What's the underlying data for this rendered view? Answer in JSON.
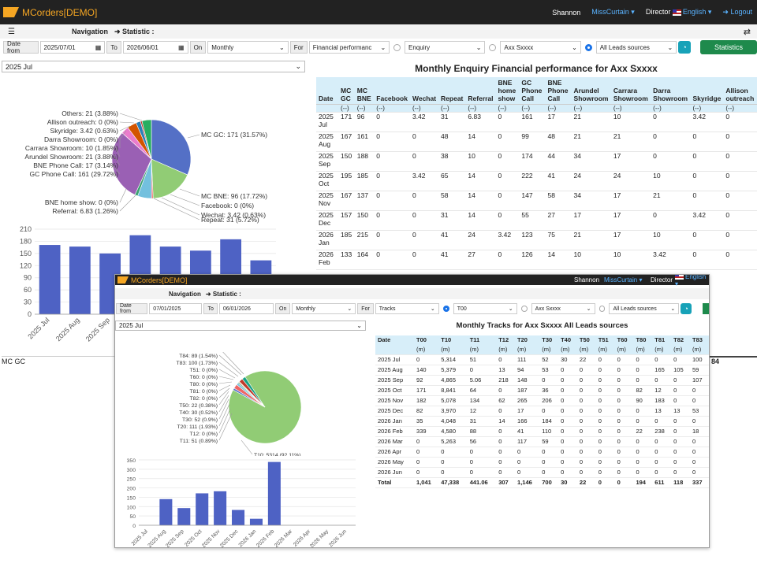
{
  "navbar": {
    "brand": "MCorders[DEMO]",
    "user": "Shannon",
    "account": "MissCurtain ▾",
    "role": "Director",
    "language": "English ▾",
    "logout": "Logout"
  },
  "toolbar": {
    "menu_icon": "☰",
    "navigation": "Navigation",
    "statistic": "➜ Statistic :",
    "expand_icon": "⇄"
  },
  "filters": {
    "date_from_label": "Date from",
    "date_from": "2025/07/01",
    "to_label": "To",
    "date_to": "2026/06/01",
    "on_label": "On",
    "period": "Monthly",
    "for_label": "For",
    "metric": "Financial performanc",
    "type": "Enquiry",
    "person": "Axx Sxxxx",
    "source": "All Leads sources",
    "statistics_button": "Statistics"
  },
  "main": {
    "period_select": "2025 Jul",
    "table_title": "Monthly Enquiry Financial performance for Axx Sxxxx",
    "footer_label": "MC GC",
    "pie_labels": [
      "MC GC: 171 (31.57%)",
      "MC BNE: 96 (17.72%)",
      "Facebook: 0 (0%)",
      "Wechat: 3.42 (0.63%)",
      "Repeat: 31 (5.72%)",
      "Referral: 6.83 (1.26%)",
      "BNE home show: 0 (0%)",
      "GC Phone Call: 161 (29.72%)",
      "BNE Phone Call: 17 (3.14%)",
      "Arundel Showroom: 21 (3.88%)",
      "Carrara Showroom: 10 (1.85%)",
      "Darra Showroom: 0 (0%)",
      "Skyridge: 3.42 (0.63%)",
      "Allison outreach: 0 (0%)",
      "Others: 21 (3.88%)"
    ],
    "columns": [
      "Date",
      "MC GC",
      "MC BNE",
      "Facebook",
      "Wechat",
      "Repeat",
      "Referral",
      "BNE home show",
      "GC Phone Call",
      "BNE Phone Call",
      "Arundel Showroom",
      "Carrara Showroom",
      "Darra Showroom",
      "Skyridge",
      "Allison outreach"
    ],
    "units": [
      "",
      "(--)",
      "(--)",
      "(--)",
      "(--)",
      "(--)",
      "(--)",
      "(--)",
      "(--)",
      "(--)",
      "(--)",
      "(--)",
      "(--)",
      "(--)",
      "(--)"
    ],
    "rows": [
      [
        "2025 Jul",
        "171",
        "96",
        "0",
        "3.42",
        "31",
        "6.83",
        "0",
        "161",
        "17",
        "21",
        "10",
        "0",
        "3.42",
        "0"
      ],
      [
        "2025 Aug",
        "167",
        "161",
        "0",
        "0",
        "48",
        "14",
        "0",
        "99",
        "48",
        "21",
        "21",
        "0",
        "0",
        "0"
      ],
      [
        "2025 Sep",
        "150",
        "188",
        "0",
        "0",
        "38",
        "10",
        "0",
        "174",
        "44",
        "34",
        "17",
        "0",
        "0",
        "0"
      ],
      [
        "2025 Oct",
        "195",
        "185",
        "0",
        "3.42",
        "65",
        "14",
        "0",
        "222",
        "41",
        "24",
        "24",
        "10",
        "0",
        "0"
      ],
      [
        "2025 Nov",
        "167",
        "137",
        "0",
        "0",
        "58",
        "14",
        "0",
        "147",
        "58",
        "34",
        "17",
        "21",
        "0",
        "0"
      ],
      [
        "2025 Dec",
        "157",
        "150",
        "0",
        "0",
        "31",
        "14",
        "0",
        "55",
        "27",
        "17",
        "17",
        "0",
        "3.42",
        "0"
      ],
      [
        "2026 Jan",
        "185",
        "215",
        "0",
        "0",
        "41",
        "24",
        "3.42",
        "123",
        "75",
        "21",
        "17",
        "10",
        "0",
        "0"
      ],
      [
        "2026 Feb",
        "133",
        "164",
        "0",
        "0",
        "41",
        "27",
        "0",
        "126",
        "14",
        "10",
        "10",
        "3.42",
        "0",
        "0"
      ]
    ],
    "peek_total": "84"
  },
  "overlay": {
    "brand": "MCorders[DEMO]",
    "user": "Shannon",
    "account": "MissCurtain ▾",
    "role": "Director",
    "language": "English ▾",
    "navigation": "Navigation",
    "statistic": "➜ Statistic :",
    "filters": {
      "date_from_label": "Date from",
      "date_from": "07/01/2025",
      "to_label": "To",
      "date_to": "06/01/2026",
      "on_label": "On",
      "period": "Monthly",
      "for_label": "For",
      "metric": "Tracks",
      "track": "T00",
      "person": "Axx Sxxxx",
      "source": "All Leads sources"
    },
    "period_select": "2025 Jul",
    "table_title": "Monthly Tracks for Axx Sxxxx All Leads sources",
    "pie_labels": [
      "T00: 0 (0%)",
      "T84: 89 (1.54%)",
      "T83: 100 (1.73%)",
      "T51: 0 (0%)",
      "T60: 0 (0%)",
      "T80: 0 (0%)",
      "T81: 0 (0%)",
      "T82: 0 (0%)",
      "T50: 22 (0.38%)",
      "T40: 30 (0.52%)",
      "T30: 52 (0.9%)",
      "T20: 111 (1.93%)",
      "T12: 0 (0%)",
      "T11: 51 (0.89%)",
      "T10: 5314 (92.11%)"
    ],
    "columns": [
      "Date",
      "T00",
      "T10",
      "T11",
      "T12",
      "T20",
      "T30",
      "T40",
      "T50",
      "T51",
      "T60",
      "T80",
      "T81",
      "T82",
      "T83"
    ],
    "units": [
      "",
      "(m)",
      "(m)",
      "(m)",
      "(m)",
      "(m)",
      "(m)",
      "(m)",
      "(m)",
      "(m)",
      "(m)",
      "(m)",
      "(m)",
      "(m)",
      "(m)"
    ],
    "rows": [
      [
        "2025 Jul",
        "0",
        "5,314",
        "51",
        "0",
        "111",
        "52",
        "30",
        "22",
        "0",
        "0",
        "0",
        "0",
        "0",
        "100"
      ],
      [
        "2025 Aug",
        "140",
        "5,379",
        "0",
        "13",
        "94",
        "53",
        "0",
        "0",
        "0",
        "0",
        "0",
        "165",
        "105",
        "59"
      ],
      [
        "2025 Sep",
        "92",
        "4,865",
        "5.06",
        "218",
        "148",
        "0",
        "0",
        "0",
        "0",
        "0",
        "0",
        "0",
        "0",
        "107"
      ],
      [
        "2025 Oct",
        "171",
        "8,841",
        "64",
        "0",
        "187",
        "36",
        "0",
        "0",
        "0",
        "0",
        "82",
        "12",
        "0",
        "0"
      ],
      [
        "2025 Nov",
        "182",
        "5,078",
        "134",
        "62",
        "265",
        "206",
        "0",
        "0",
        "0",
        "0",
        "90",
        "183",
        "0",
        "0"
      ],
      [
        "2025 Dec",
        "82",
        "3,970",
        "12",
        "0",
        "17",
        "0",
        "0",
        "0",
        "0",
        "0",
        "0",
        "13",
        "13",
        "53"
      ],
      [
        "2026 Jan",
        "35",
        "4,048",
        "31",
        "14",
        "166",
        "184",
        "0",
        "0",
        "0",
        "0",
        "0",
        "0",
        "0",
        "0"
      ],
      [
        "2026 Feb",
        "339",
        "4,580",
        "88",
        "0",
        "41",
        "110",
        "0",
        "0",
        "0",
        "0",
        "22",
        "238",
        "0",
        "18"
      ],
      [
        "2026 Mar",
        "0",
        "5,263",
        "56",
        "0",
        "117",
        "59",
        "0",
        "0",
        "0",
        "0",
        "0",
        "0",
        "0",
        "0"
      ],
      [
        "2026 Apr",
        "0",
        "0",
        "0",
        "0",
        "0",
        "0",
        "0",
        "0",
        "0",
        "0",
        "0",
        "0",
        "0",
        "0"
      ],
      [
        "2026 May",
        "0",
        "0",
        "0",
        "0",
        "0",
        "0",
        "0",
        "0",
        "0",
        "0",
        "0",
        "0",
        "0",
        "0"
      ],
      [
        "2026 Jun",
        "0",
        "0",
        "0",
        "0",
        "0",
        "0",
        "0",
        "0",
        "0",
        "0",
        "0",
        "0",
        "0",
        "0"
      ]
    ],
    "total": [
      "Total",
      "1,041",
      "47,338",
      "441.06",
      "307",
      "1,146",
      "700",
      "30",
      "22",
      "0",
      "0",
      "194",
      "611",
      "118",
      "337"
    ]
  },
  "chart_data": [
    {
      "type": "pie",
      "labels": [
        "MC GC",
        "MC BNE",
        "Facebook",
        "Wechat",
        "Repeat",
        "Referral",
        "BNE home show",
        "GC Phone Call",
        "BNE Phone Call",
        "Arundel Showroom",
        "Carrara Showroom",
        "Darra Showroom",
        "Skyridge",
        "Allison outreach",
        "Others"
      ],
      "values": [
        171,
        96,
        0,
        3.42,
        31,
        6.83,
        0,
        161,
        17,
        21,
        10,
        0,
        3.42,
        0,
        21
      ],
      "colors": [
        "#5470c6",
        "#91cc75",
        "#fac858",
        "#ee6666",
        "#73c0de",
        "#3ba272",
        "#fc8452",
        "#9a60b4",
        "#ea7ccc",
        "#d35400",
        "#2c7fb8",
        "#8e44ad",
        "#c0392b",
        "#16a085",
        "#27ae60"
      ]
    },
    {
      "type": "bar",
      "categories": [
        "2025 Jul",
        "2025 Aug",
        "2025 Sep",
        "2025 Oct",
        "2025 Nov",
        "2025 Dec",
        "2026 Jan",
        "2026 Feb"
      ],
      "values": [
        171,
        167,
        150,
        195,
        167,
        157,
        185,
        133
      ],
      "yticks": [
        0,
        30,
        60,
        90,
        120,
        150,
        180
      ],
      "extra_ytick": 210,
      "ylim": [
        0,
        210
      ],
      "color": "#4e62c4"
    },
    {
      "type": "pie",
      "labels": [
        "T10",
        "T11",
        "T12",
        "T20",
        "T30",
        "T40",
        "T50",
        "T82",
        "T81",
        "T80",
        "T60",
        "T51",
        "T83",
        "T84",
        "T00"
      ],
      "values": [
        5314,
        51,
        0,
        111,
        52,
        30,
        22,
        0,
        0,
        0,
        0,
        0,
        100,
        89,
        0
      ],
      "colors": [
        "#91cc75",
        "#5470c6",
        "#fac858",
        "#ee6666",
        "#73c0de",
        "#3ba272",
        "#fc8452",
        "#9a60b4",
        "#ea7ccc",
        "#d35400",
        "#2c7fb8",
        "#8e44ad",
        "#c0392b",
        "#16a085",
        "#27ae60"
      ]
    },
    {
      "type": "bar",
      "categories": [
        "2025 Jul",
        "2025 Aug",
        "2025 Sep",
        "2025 Oct",
        "2025 Nov",
        "2025 Dec",
        "2026 Jan",
        "2026 Feb",
        "2026 Mar",
        "2026 Apr",
        "2026 May",
        "2026 Jun"
      ],
      "values": [
        0,
        140,
        92,
        171,
        182,
        82,
        35,
        339,
        0,
        0,
        0,
        0
      ],
      "yticks": [
        0,
        50,
        100,
        150,
        200,
        250,
        300,
        350
      ],
      "ylim": [
        0,
        350
      ],
      "color": "#4e62c4"
    }
  ]
}
